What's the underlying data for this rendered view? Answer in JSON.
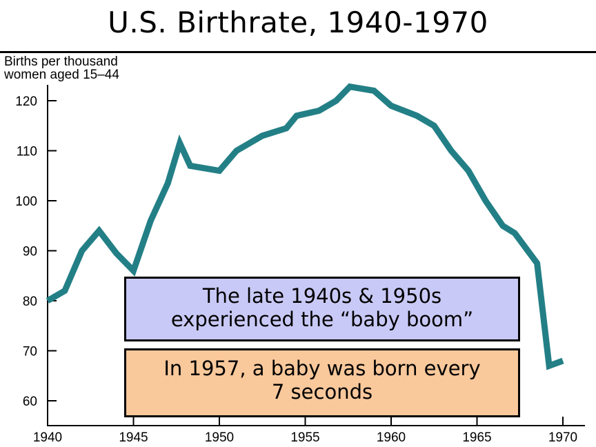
{
  "title": "U.S. Birthrate, 1940-1970",
  "chart_data": {
    "type": "line",
    "title": "U.S. Birthrate, 1940-1970",
    "ylabel_lines": [
      "Births per thousand",
      "women aged 15–44"
    ],
    "xlabel": "",
    "x_ticks": [
      1940,
      1945,
      1950,
      1955,
      1960,
      1965,
      1970
    ],
    "y_ticks": [
      60,
      70,
      80,
      90,
      100,
      110,
      120
    ],
    "xlim": [
      1940,
      1971
    ],
    "ylim": [
      57,
      123
    ],
    "grid": false,
    "line_color": "#237f86",
    "series": [
      {
        "x": [
          1940,
          1941,
          1942,
          1943,
          1944,
          1945,
          1946,
          1947,
          1947.7,
          1948.3,
          1950,
          1951,
          1952.5,
          1953.9,
          1954.5,
          1955.8,
          1956.8,
          1957.6,
          1959,
          1960,
          1961.5,
          1962.5,
          1963.5,
          1964.5,
          1965.5,
          1966.5,
          1967.2,
          1968.5,
          1969.2,
          1970
        ],
        "y": [
          80,
          82,
          90,
          94,
          89.5,
          86,
          96,
          103.5,
          111.5,
          107,
          106,
          110,
          113,
          114.5,
          117,
          118,
          120,
          122.8,
          122,
          119,
          117,
          115,
          110,
          106,
          100,
          95,
          93.5,
          87.5,
          67,
          68
        ]
      }
    ]
  },
  "annotations": {
    "box1": [
      "The late 1940s & 1950s",
      "experienced the “baby boom”"
    ],
    "box2": [
      "In 1957, a baby was born every",
      "7 seconds"
    ],
    "box1_color": "#c9c9f7",
    "box2_color": "#f9c89b"
  }
}
